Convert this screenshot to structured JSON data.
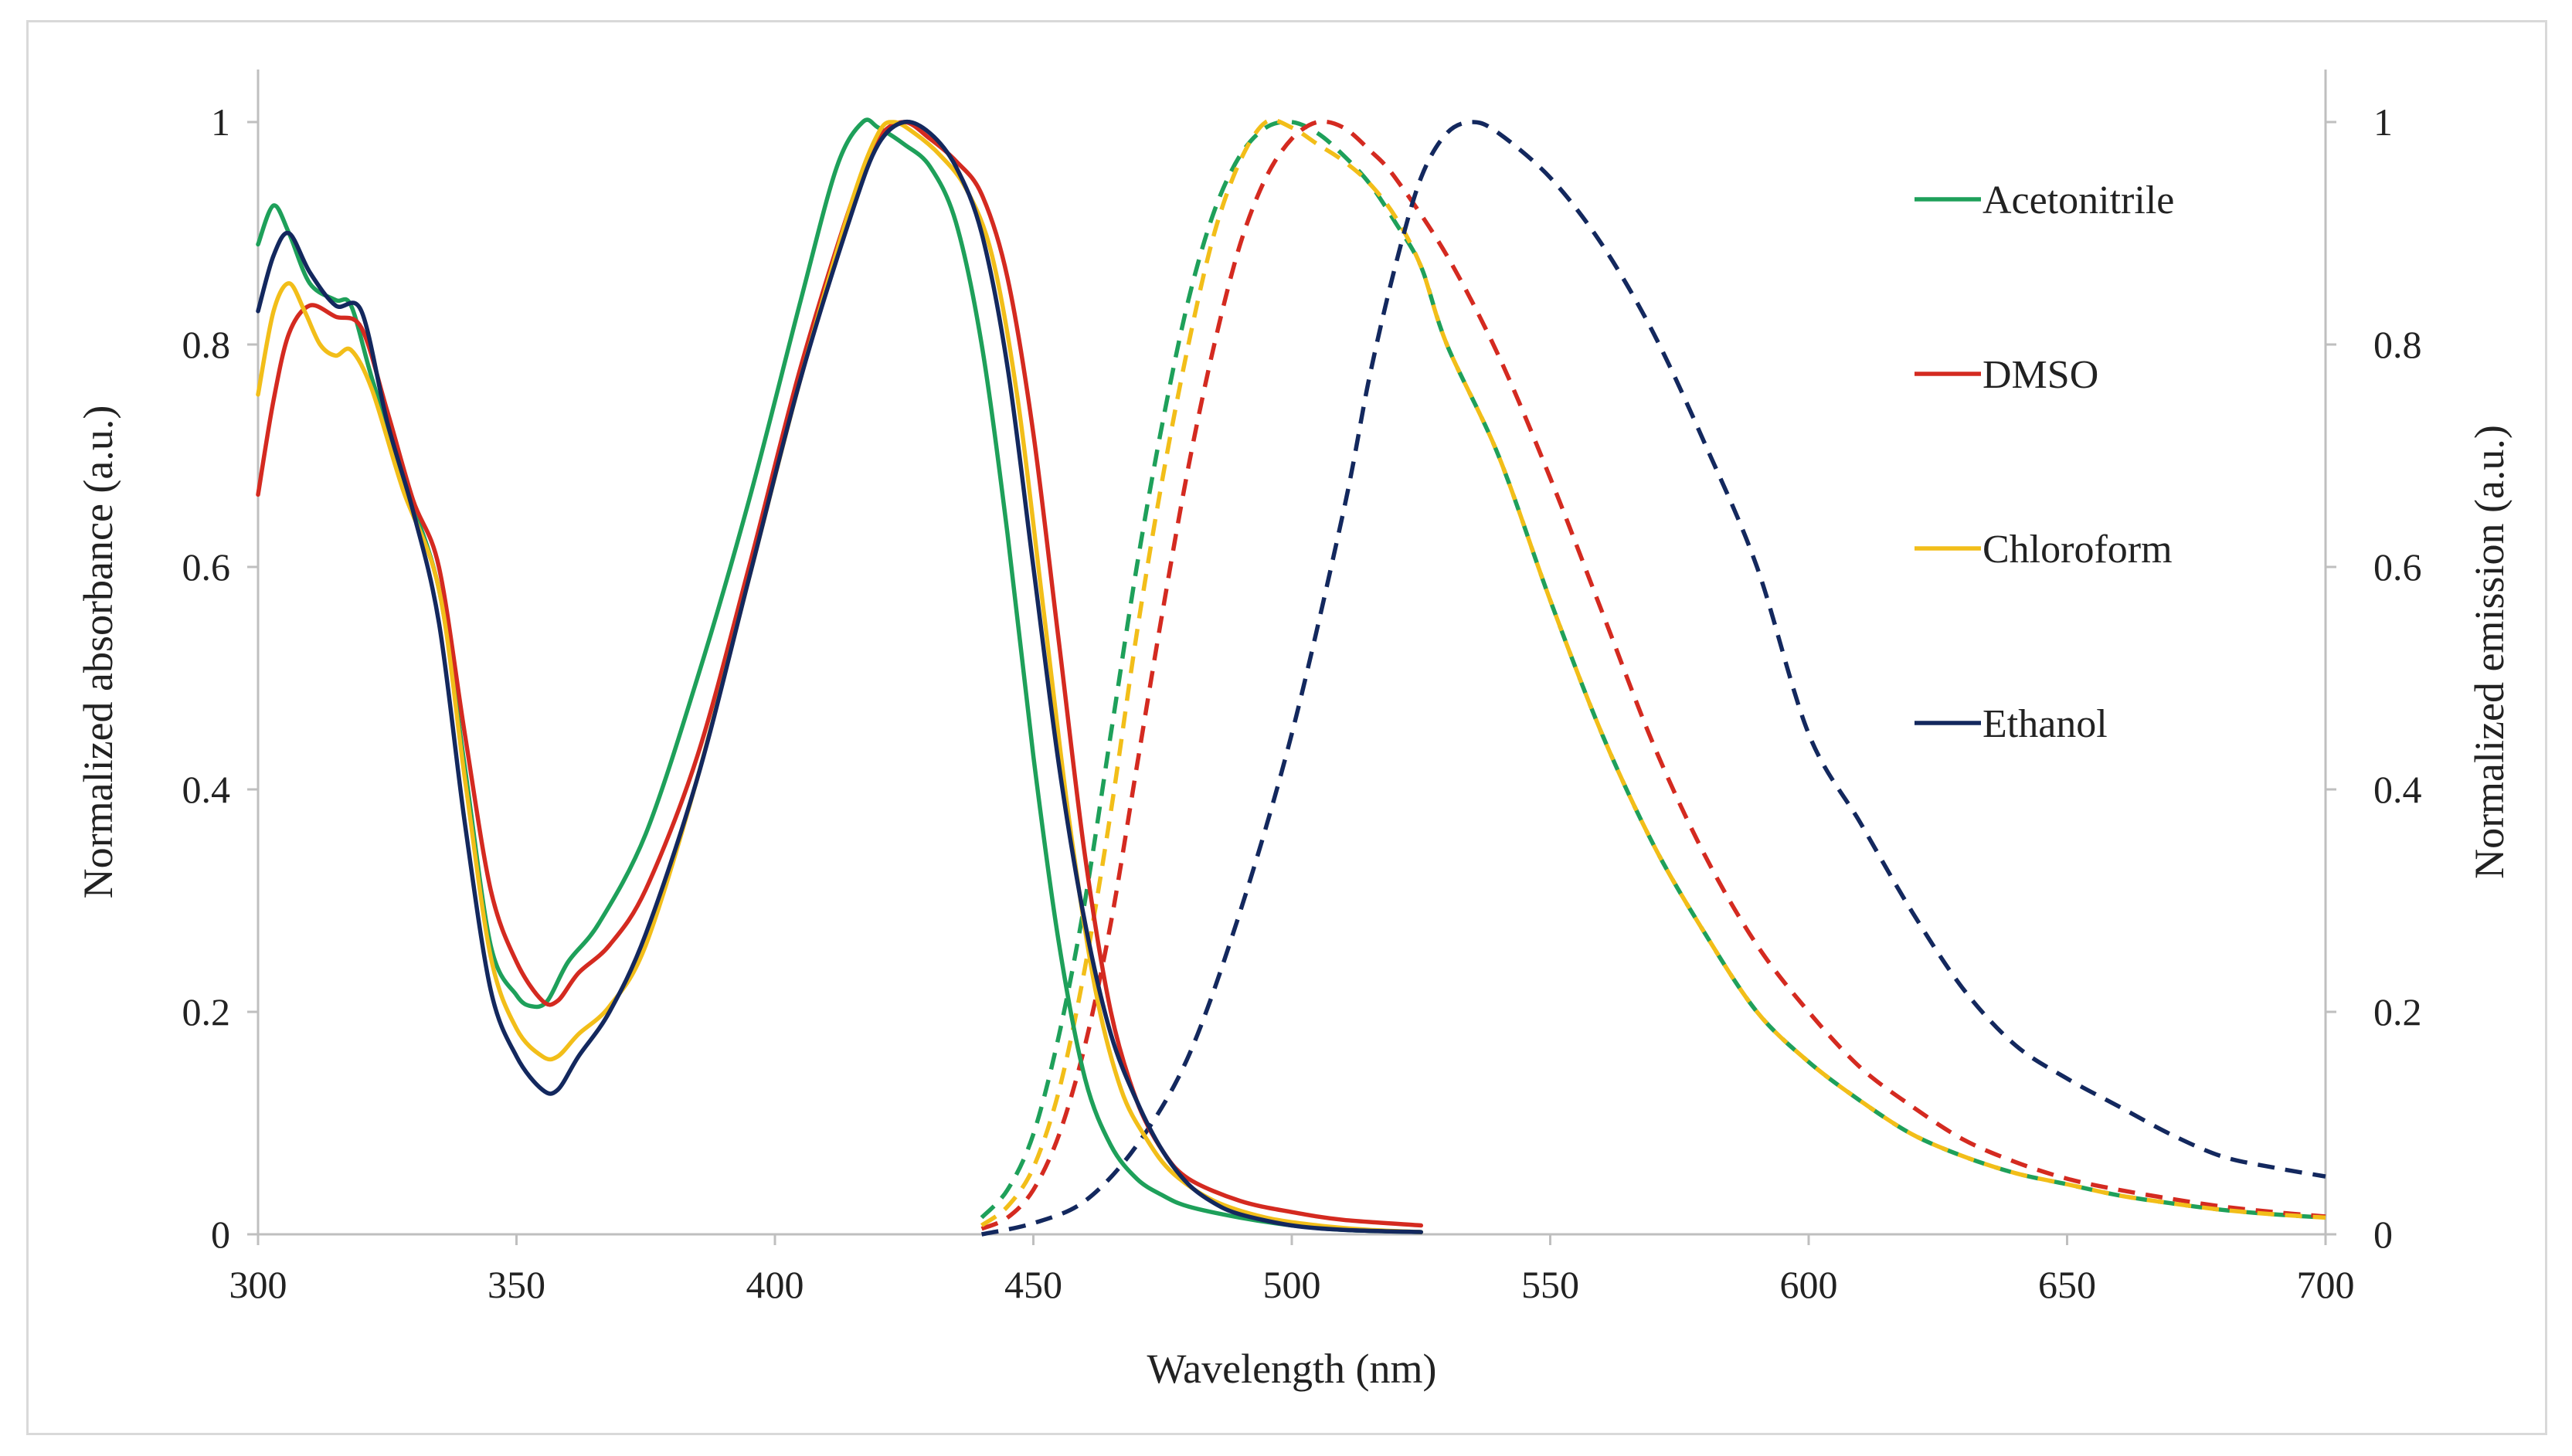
{
  "chart_data": {
    "type": "line",
    "xlabel": "Wavelength (nm)",
    "ylabel_left": "Normalized absorbance (a.u.)",
    "ylabel_right": "Normalized emission (a.u.)",
    "xlim": [
      300,
      700
    ],
    "ylim": [
      0,
      1
    ],
    "x_ticks": [
      "300",
      "350",
      "400",
      "450",
      "500",
      "550",
      "600",
      "650",
      "700"
    ],
    "y_ticks_left": [
      "0",
      "0.2",
      "0.4",
      "0.6",
      "0.8",
      "1"
    ],
    "y_ticks_right": [
      "0",
      "0.2",
      "0.4",
      "0.6",
      "0.8",
      "1"
    ],
    "legend_position": "right",
    "series": [
      {
        "name": "Acetonitrile",
        "color": "#1ea05a",
        "absorbance": [
          [
            300,
            0.89
          ],
          [
            303,
            0.925
          ],
          [
            306,
            0.9
          ],
          [
            310,
            0.855
          ],
          [
            315,
            0.84
          ],
          [
            318,
            0.835
          ],
          [
            322,
            0.77
          ],
          [
            328,
            0.68
          ],
          [
            335,
            0.58
          ],
          [
            340,
            0.42
          ],
          [
            345,
            0.26
          ],
          [
            350,
            0.215
          ],
          [
            353,
            0.205
          ],
          [
            356,
            0.21
          ],
          [
            360,
            0.245
          ],
          [
            366,
            0.28
          ],
          [
            375,
            0.36
          ],
          [
            385,
            0.5
          ],
          [
            395,
            0.66
          ],
          [
            405,
            0.84
          ],
          [
            412,
            0.96
          ],
          [
            417,
            1.0
          ],
          [
            420,
            0.995
          ],
          [
            425,
            0.98
          ],
          [
            430,
            0.96
          ],
          [
            435,
            0.91
          ],
          [
            440,
            0.8
          ],
          [
            445,
            0.63
          ],
          [
            450,
            0.43
          ],
          [
            455,
            0.26
          ],
          [
            460,
            0.14
          ],
          [
            465,
            0.08
          ],
          [
            470,
            0.05
          ],
          [
            475,
            0.035
          ],
          [
            480,
            0.025
          ],
          [
            490,
            0.015
          ],
          [
            500,
            0.008
          ],
          [
            510,
            0.004
          ],
          [
            525,
            0.002
          ]
        ],
        "emission": [
          [
            440,
            0.015
          ],
          [
            445,
            0.04
          ],
          [
            450,
            0.09
          ],
          [
            455,
            0.18
          ],
          [
            460,
            0.3
          ],
          [
            465,
            0.45
          ],
          [
            470,
            0.6
          ],
          [
            475,
            0.73
          ],
          [
            480,
            0.84
          ],
          [
            485,
            0.92
          ],
          [
            490,
            0.97
          ],
          [
            495,
            0.995
          ],
          [
            500,
            1.0
          ],
          [
            505,
            0.99
          ],
          [
            510,
            0.97
          ],
          [
            515,
            0.945
          ],
          [
            520,
            0.91
          ],
          [
            525,
            0.87
          ],
          [
            530,
            0.8
          ],
          [
            540,
            0.7
          ],
          [
            550,
            0.57
          ],
          [
            560,
            0.45
          ],
          [
            570,
            0.35
          ],
          [
            580,
            0.27
          ],
          [
            590,
            0.2
          ],
          [
            600,
            0.155
          ],
          [
            610,
            0.12
          ],
          [
            620,
            0.09
          ],
          [
            630,
            0.07
          ],
          [
            640,
            0.055
          ],
          [
            650,
            0.045
          ],
          [
            660,
            0.035
          ],
          [
            670,
            0.028
          ],
          [
            680,
            0.022
          ],
          [
            690,
            0.018
          ],
          [
            700,
            0.015
          ]
        ]
      },
      {
        "name": "DMSO",
        "color": "#d42a20",
        "absorbance": [
          [
            300,
            0.665
          ],
          [
            303,
            0.75
          ],
          [
            306,
            0.81
          ],
          [
            310,
            0.835
          ],
          [
            315,
            0.825
          ],
          [
            320,
            0.815
          ],
          [
            325,
            0.74
          ],
          [
            330,
            0.66
          ],
          [
            335,
            0.6
          ],
          [
            340,
            0.45
          ],
          [
            345,
            0.31
          ],
          [
            350,
            0.245
          ],
          [
            355,
            0.21
          ],
          [
            358,
            0.21
          ],
          [
            362,
            0.235
          ],
          [
            368,
            0.26
          ],
          [
            375,
            0.31
          ],
          [
            385,
            0.43
          ],
          [
            395,
            0.6
          ],
          [
            405,
            0.78
          ],
          [
            415,
            0.93
          ],
          [
            420,
            0.985
          ],
          [
            425,
            1.0
          ],
          [
            430,
            0.985
          ],
          [
            435,
            0.965
          ],
          [
            440,
            0.935
          ],
          [
            445,
            0.86
          ],
          [
            450,
            0.72
          ],
          [
            455,
            0.53
          ],
          [
            460,
            0.34
          ],
          [
            465,
            0.2
          ],
          [
            470,
            0.12
          ],
          [
            475,
            0.075
          ],
          [
            480,
            0.05
          ],
          [
            490,
            0.03
          ],
          [
            500,
            0.02
          ],
          [
            510,
            0.013
          ],
          [
            525,
            0.008
          ]
        ],
        "emission": [
          [
            440,
            0.005
          ],
          [
            445,
            0.015
          ],
          [
            450,
            0.04
          ],
          [
            455,
            0.09
          ],
          [
            460,
            0.17
          ],
          [
            465,
            0.28
          ],
          [
            470,
            0.42
          ],
          [
            475,
            0.56
          ],
          [
            480,
            0.69
          ],
          [
            485,
            0.8
          ],
          [
            490,
            0.89
          ],
          [
            495,
            0.95
          ],
          [
            500,
            0.985
          ],
          [
            505,
            1.0
          ],
          [
            510,
            0.995
          ],
          [
            515,
            0.975
          ],
          [
            520,
            0.95
          ],
          [
            530,
            0.88
          ],
          [
            540,
            0.79
          ],
          [
            550,
            0.68
          ],
          [
            560,
            0.56
          ],
          [
            570,
            0.44
          ],
          [
            580,
            0.34
          ],
          [
            590,
            0.26
          ],
          [
            600,
            0.2
          ],
          [
            610,
            0.15
          ],
          [
            620,
            0.115
          ],
          [
            630,
            0.085
          ],
          [
            640,
            0.065
          ],
          [
            650,
            0.05
          ],
          [
            660,
            0.04
          ],
          [
            670,
            0.032
          ],
          [
            680,
            0.025
          ],
          [
            690,
            0.02
          ],
          [
            700,
            0.016
          ]
        ]
      },
      {
        "name": "Chloroform",
        "color": "#f2be19",
        "absorbance": [
          [
            300,
            0.755
          ],
          [
            303,
            0.83
          ],
          [
            306,
            0.855
          ],
          [
            309,
            0.83
          ],
          [
            312,
            0.8
          ],
          [
            315,
            0.79
          ],
          [
            318,
            0.795
          ],
          [
            322,
            0.76
          ],
          [
            328,
            0.67
          ],
          [
            335,
            0.58
          ],
          [
            340,
            0.41
          ],
          [
            345,
            0.25
          ],
          [
            350,
            0.185
          ],
          [
            355,
            0.16
          ],
          [
            358,
            0.16
          ],
          [
            362,
            0.18
          ],
          [
            368,
            0.205
          ],
          [
            375,
            0.26
          ],
          [
            385,
            0.41
          ],
          [
            395,
            0.59
          ],
          [
            405,
            0.77
          ],
          [
            415,
            0.93
          ],
          [
            420,
            0.99
          ],
          [
            423,
            1.0
          ],
          [
            427,
            0.99
          ],
          [
            432,
            0.97
          ],
          [
            437,
            0.94
          ],
          [
            442,
            0.88
          ],
          [
            447,
            0.75
          ],
          [
            452,
            0.56
          ],
          [
            457,
            0.37
          ],
          [
            462,
            0.22
          ],
          [
            467,
            0.13
          ],
          [
            472,
            0.085
          ],
          [
            477,
            0.055
          ],
          [
            485,
            0.03
          ],
          [
            495,
            0.015
          ],
          [
            505,
            0.008
          ],
          [
            515,
            0.004
          ],
          [
            525,
            0.002
          ]
        ],
        "emission": [
          [
            440,
            0.008
          ],
          [
            445,
            0.025
          ],
          [
            450,
            0.06
          ],
          [
            455,
            0.13
          ],
          [
            460,
            0.24
          ],
          [
            465,
            0.38
          ],
          [
            470,
            0.54
          ],
          [
            475,
            0.68
          ],
          [
            480,
            0.8
          ],
          [
            485,
            0.9
          ],
          [
            490,
            0.965
          ],
          [
            495,
            1.0
          ],
          [
            500,
            0.995
          ],
          [
            505,
            0.98
          ],
          [
            510,
            0.965
          ],
          [
            515,
            0.945
          ],
          [
            520,
            0.915
          ],
          [
            525,
            0.87
          ],
          [
            530,
            0.8
          ],
          [
            540,
            0.7
          ],
          [
            550,
            0.57
          ],
          [
            560,
            0.45
          ],
          [
            570,
            0.35
          ],
          [
            580,
            0.27
          ],
          [
            590,
            0.2
          ],
          [
            600,
            0.155
          ],
          [
            610,
            0.12
          ],
          [
            620,
            0.09
          ],
          [
            630,
            0.07
          ],
          [
            640,
            0.055
          ],
          [
            650,
            0.045
          ],
          [
            660,
            0.035
          ],
          [
            670,
            0.028
          ],
          [
            680,
            0.022
          ],
          [
            690,
            0.018
          ],
          [
            700,
            0.015
          ]
        ]
      },
      {
        "name": "Ethanol",
        "color": "#13285e",
        "absorbance": [
          [
            300,
            0.83
          ],
          [
            303,
            0.88
          ],
          [
            306,
            0.9
          ],
          [
            310,
            0.865
          ],
          [
            315,
            0.835
          ],
          [
            320,
            0.83
          ],
          [
            325,
            0.73
          ],
          [
            330,
            0.65
          ],
          [
            335,
            0.55
          ],
          [
            340,
            0.37
          ],
          [
            345,
            0.22
          ],
          [
            350,
            0.16
          ],
          [
            355,
            0.13
          ],
          [
            358,
            0.13
          ],
          [
            362,
            0.16
          ],
          [
            368,
            0.2
          ],
          [
            375,
            0.27
          ],
          [
            385,
            0.41
          ],
          [
            395,
            0.59
          ],
          [
            405,
            0.77
          ],
          [
            415,
            0.92
          ],
          [
            420,
            0.98
          ],
          [
            425,
            1.0
          ],
          [
            430,
            0.99
          ],
          [
            435,
            0.96
          ],
          [
            440,
            0.9
          ],
          [
            445,
            0.78
          ],
          [
            450,
            0.6
          ],
          [
            455,
            0.42
          ],
          [
            460,
            0.28
          ],
          [
            465,
            0.18
          ],
          [
            470,
            0.12
          ],
          [
            475,
            0.075
          ],
          [
            480,
            0.045
          ],
          [
            485,
            0.028
          ],
          [
            490,
            0.018
          ],
          [
            500,
            0.008
          ],
          [
            510,
            0.004
          ],
          [
            525,
            0.002
          ]
        ],
        "emission": [
          [
            440,
            0.0
          ],
          [
            450,
            0.01
          ],
          [
            460,
            0.03
          ],
          [
            470,
            0.08
          ],
          [
            480,
            0.16
          ],
          [
            490,
            0.29
          ],
          [
            500,
            0.45
          ],
          [
            510,
            0.65
          ],
          [
            515,
            0.77
          ],
          [
            520,
            0.87
          ],
          [
            525,
            0.95
          ],
          [
            530,
            0.99
          ],
          [
            535,
            1.0
          ],
          [
            540,
            0.99
          ],
          [
            550,
            0.95
          ],
          [
            560,
            0.89
          ],
          [
            570,
            0.81
          ],
          [
            580,
            0.71
          ],
          [
            590,
            0.6
          ],
          [
            600,
            0.45
          ],
          [
            610,
            0.37
          ],
          [
            620,
            0.29
          ],
          [
            630,
            0.22
          ],
          [
            640,
            0.17
          ],
          [
            650,
            0.14
          ],
          [
            660,
            0.115
          ],
          [
            670,
            0.09
          ],
          [
            680,
            0.07
          ],
          [
            690,
            0.06
          ],
          [
            700,
            0.052
          ]
        ]
      }
    ]
  }
}
